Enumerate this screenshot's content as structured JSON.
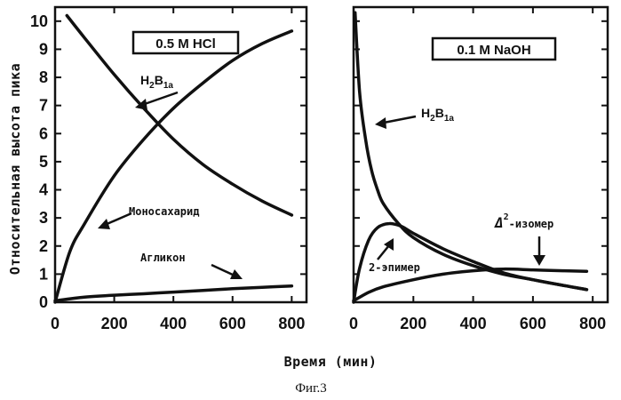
{
  "figure": {
    "caption": "Фиг.3",
    "ylabel": "Относительная высота пика",
    "xlabel": "Время (мин)"
  },
  "chart_data": [
    {
      "type": "line",
      "title": "0.5 M HCl",
      "xlim": [
        0,
        850
      ],
      "ylim": [
        0,
        10.5
      ],
      "xticks": [
        0,
        200,
        400,
        600,
        800
      ],
      "yticks": [
        0,
        1,
        2,
        3,
        4,
        5,
        6,
        7,
        8,
        9,
        10
      ],
      "series": [
        {
          "name": "H2B1a",
          "label_main": "H",
          "label_sub1": "2",
          "label_mid": "B",
          "label_sub2": "1a",
          "x": [
            40,
            100,
            200,
            300,
            400,
            500,
            600,
            700,
            800
          ],
          "y": [
            10.2,
            9.4,
            8.1,
            6.9,
            5.8,
            4.9,
            4.2,
            3.6,
            3.1
          ]
        },
        {
          "name": "Моносахарид",
          "x": [
            0,
            50,
            100,
            200,
            300,
            400,
            500,
            600,
            700,
            800
          ],
          "y": [
            0,
            1.8,
            2.8,
            4.5,
            5.8,
            6.9,
            7.8,
            8.6,
            9.2,
            9.65
          ]
        },
        {
          "name": "Агликон",
          "x": [
            0,
            100,
            200,
            300,
            400,
            500,
            600,
            700,
            800
          ],
          "y": [
            0.05,
            0.18,
            0.25,
            0.3,
            0.36,
            0.42,
            0.48,
            0.53,
            0.58
          ]
        }
      ]
    },
    {
      "type": "line",
      "title": "0.1 M NaOH",
      "xlim": [
        0,
        850
      ],
      "ylim": [
        0,
        10.5
      ],
      "xticks": [
        0,
        200,
        400,
        600,
        800
      ],
      "series": [
        {
          "name": "H2B1a",
          "label_main": "H",
          "label_sub1": "2",
          "label_mid": "B",
          "label_sub2": "1a",
          "x": [
            5,
            20,
            40,
            60,
            80,
            100,
            150,
            200,
            300,
            400,
            500,
            600,
            700,
            780
          ],
          "y": [
            10.3,
            7.5,
            5.8,
            4.7,
            4.0,
            3.5,
            2.8,
            2.3,
            1.7,
            1.3,
            1.0,
            0.8,
            0.6,
            0.45
          ]
        },
        {
          "name": "2-эпимер",
          "x": [
            0,
            20,
            50,
            80,
            120,
            160,
            200,
            300,
            400,
            500,
            600,
            700,
            780
          ],
          "y": [
            0,
            1.2,
            2.2,
            2.65,
            2.8,
            2.7,
            2.45,
            1.9,
            1.45,
            1.05,
            0.8,
            0.6,
            0.45
          ]
        },
        {
          "name": "Δ2-изомер",
          "label_delta": "Δ",
          "label_sup": "2",
          "label_rest": "-изомер",
          "x": [
            0,
            50,
            100,
            200,
            300,
            400,
            500,
            600,
            700,
            780
          ],
          "y": [
            0.05,
            0.35,
            0.55,
            0.8,
            1.0,
            1.12,
            1.18,
            1.15,
            1.12,
            1.1
          ]
        }
      ]
    }
  ]
}
